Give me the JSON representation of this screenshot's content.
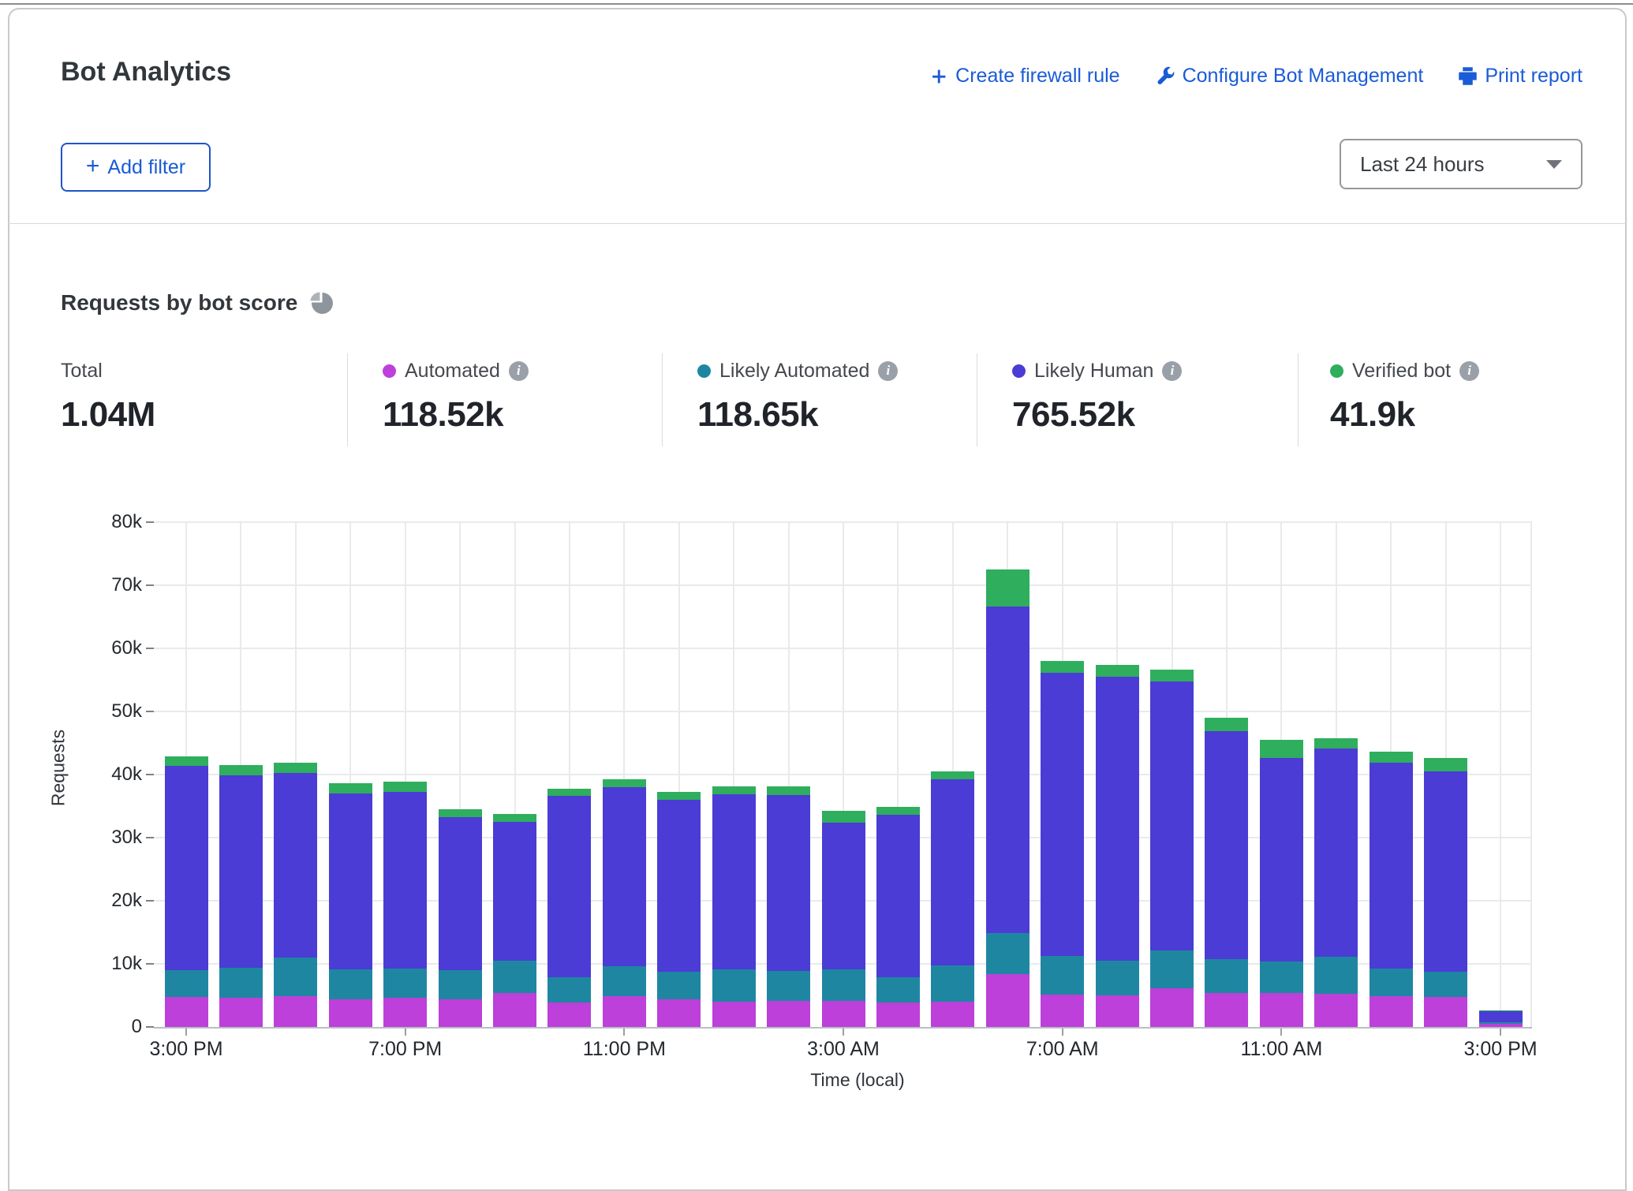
{
  "header": {
    "title": "Bot Analytics",
    "actions": [
      {
        "label": "Create firewall rule",
        "icon": "plus-icon"
      },
      {
        "label": "Configure Bot Management",
        "icon": "wrench-icon"
      },
      {
        "label": "Print report",
        "icon": "printer-icon"
      }
    ],
    "add_filter_label": "Add filter",
    "add_filter_plus": "+",
    "time_range_value": "Last 24 hours"
  },
  "section": {
    "heading": "Requests by bot score"
  },
  "stats": {
    "total_label": "Total",
    "total_value": "1.04M",
    "legend": [
      {
        "label": "Automated",
        "value": "118.52k",
        "color": "#bc40d9"
      },
      {
        "label": "Likely Automated",
        "value": "118.65k",
        "color": "#1f86a2"
      },
      {
        "label": "Likely Human",
        "value": "765.52k",
        "color": "#4a3cd4"
      },
      {
        "label": "Verified bot",
        "value": "41.9k",
        "color": "#2fae5d"
      }
    ]
  },
  "chart_data": {
    "type": "bar",
    "stacked": true,
    "title": "Requests by bot score",
    "xlabel": "Time (local)",
    "ylabel": "Requests",
    "ylim": [
      0,
      80000
    ],
    "y_ticks": [
      "0",
      "10k",
      "20k",
      "30k",
      "40k",
      "50k",
      "60k",
      "70k",
      "80k"
    ],
    "x_tick_indices": [
      0,
      4,
      8,
      12,
      16,
      20,
      24
    ],
    "x_tick_labels": [
      "3:00 PM",
      "7:00 PM",
      "11:00 PM",
      "3:00 AM",
      "7:00 AM",
      "11:00 AM",
      "3:00 PM"
    ],
    "categories": [
      "3:00 PM",
      "4:00 PM",
      "5:00 PM",
      "6:00 PM",
      "7:00 PM",
      "8:00 PM",
      "9:00 PM",
      "10:00 PM",
      "11:00 PM",
      "12:00 AM",
      "1:00 AM",
      "2:00 AM",
      "3:00 AM",
      "4:00 AM",
      "5:00 AM",
      "6:00 AM",
      "7:00 AM",
      "8:00 AM",
      "9:00 AM",
      "10:00 AM",
      "11:00 AM",
      "12:00 PM",
      "1:00 PM",
      "2:00 PM",
      "3:00 PM"
    ],
    "series": [
      {
        "name": "Automated",
        "color": "#bc40d9",
        "values": [
          4750,
          4600,
          4900,
          4400,
          4600,
          4400,
          5400,
          3900,
          4900,
          4400,
          4000,
          4100,
          4100,
          3900,
          4000,
          8400,
          5100,
          5000,
          6100,
          5400,
          5400,
          5300,
          4900,
          4800,
          450
        ]
      },
      {
        "name": "Likely Automated",
        "color": "#1f86a2",
        "values": [
          4250,
          4800,
          6100,
          4700,
          4700,
          4600,
          5100,
          4000,
          4700,
          4300,
          5100,
          4800,
          5000,
          4000,
          5800,
          6500,
          6200,
          5500,
          6000,
          5400,
          5000,
          5800,
          4300,
          4000,
          300
        ]
      },
      {
        "name": "Likely Human",
        "color": "#4a3cd4",
        "values": [
          32400,
          30500,
          29300,
          27900,
          28000,
          24250,
          22000,
          28700,
          28400,
          27300,
          27800,
          27900,
          23300,
          25700,
          29400,
          51700,
          44800,
          45000,
          42650,
          36100,
          32200,
          33000,
          32700,
          31700,
          1750
        ]
      },
      {
        "name": "Verified bot",
        "color": "#2fae5d",
        "values": [
          1500,
          1600,
          1600,
          1600,
          1600,
          1250,
          1200,
          1200,
          1200,
          1250,
          1200,
          1300,
          1800,
          1300,
          1300,
          5900,
          1900,
          1900,
          1850,
          2100,
          2900,
          1650,
          1700,
          2100,
          100
        ]
      }
    ],
    "legend_position": "top",
    "grid": true
  }
}
